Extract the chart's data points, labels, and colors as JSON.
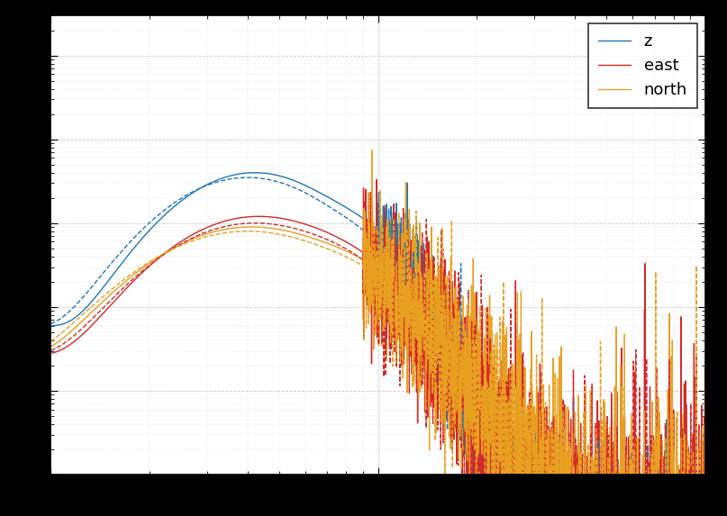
{
  "legend_labels": [
    "z",
    "east",
    "north"
  ],
  "colors": {
    "z": "#1f77b4",
    "east": "#d62728",
    "north": "#e8a020"
  },
  "xlim": [
    1,
    100
  ],
  "ylim": [
    1e-09,
    0.0003
  ],
  "figure_facecolor": "#000000",
  "axes_facecolor": "#ffffff",
  "grid_color": "#cccccc",
  "seed_solid": 42,
  "seed_dashed": 99,
  "n_points": 3000
}
